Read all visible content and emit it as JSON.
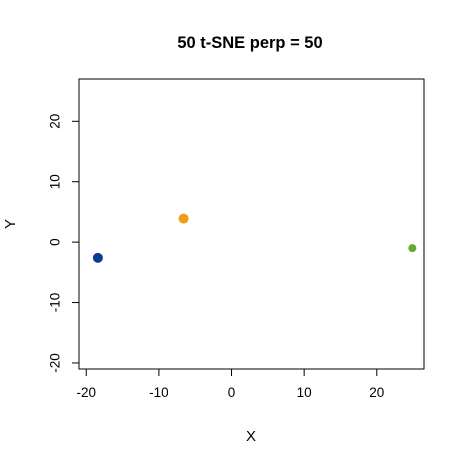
{
  "chart_data": {
    "type": "scatter",
    "title": "50 t-SNE perp = 50",
    "xlabel": "X",
    "ylabel": "Y",
    "xlim": [
      -21,
      26.5
    ],
    "ylim": [
      -21,
      27
    ],
    "xticks": [
      -20,
      -10,
      0,
      10,
      20
    ],
    "yticks": [
      -20,
      -10,
      0,
      10,
      20
    ],
    "xtick_labels": [
      "-20",
      "-10",
      "0",
      "10",
      "20"
    ],
    "ytick_labels": [
      "-20",
      "-10",
      "0",
      "10",
      "20"
    ],
    "grid": false,
    "series": [
      {
        "color": "#0a3d91",
        "points": [
          [
            -18.4,
            -2.6
          ]
        ]
      },
      {
        "color": "#f39c12",
        "points": [
          [
            -6.6,
            3.9
          ]
        ]
      },
      {
        "color": "#66a832",
        "points": [
          [
            24.9,
            -1.0
          ]
        ]
      }
    ]
  }
}
